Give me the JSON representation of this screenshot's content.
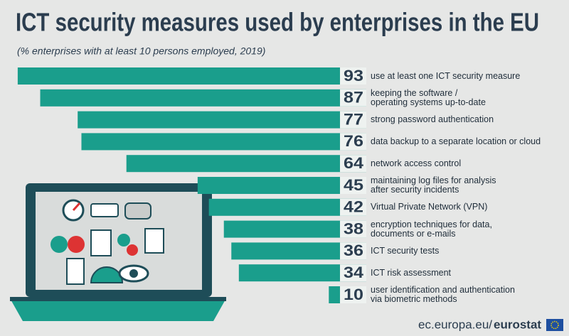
{
  "chart_data": {
    "type": "bar",
    "title": "ICT security measures used by enterprises in the EU",
    "subtitle": "(% enterprises with at least 10 persons employed, 2019)",
    "categories": [
      "use at least one ICT security measure",
      "keeping the software /\noperating systems up-to-date",
      "strong password authentication",
      "data backup to a separate location or cloud",
      "network access control",
      "maintaining log files for analysis\nafter security incidents",
      "Virtual Private Network (VPN)",
      "encryption techniques for data,\ndocuments or e-mails",
      "ICT security tests",
      "ICT risk assessment",
      "user identification and authentication\nvia biometric methods"
    ],
    "values": [
      93,
      87,
      77,
      76,
      64,
      45,
      42,
      38,
      36,
      34,
      10
    ],
    "color": "#1a9e8c",
    "source": [
      "ec.europa.eu/",
      "eurostat"
    ]
  }
}
